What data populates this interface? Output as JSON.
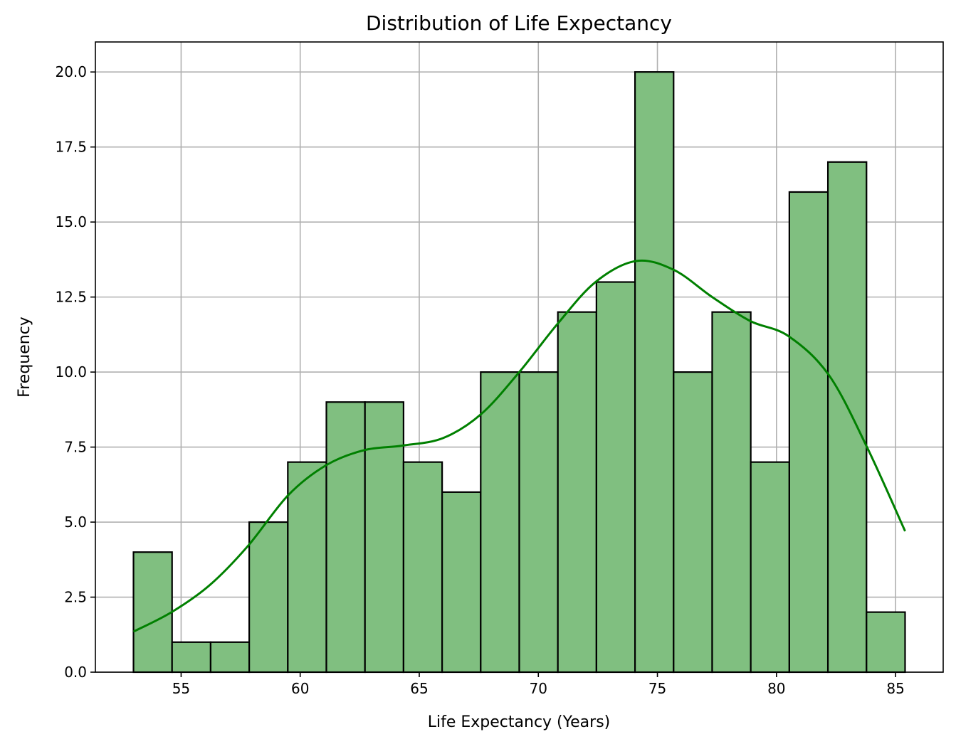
{
  "chart_data": {
    "type": "bar",
    "title": "Distribution of Life Expectancy",
    "xlabel": "Life Expectancy (Years)",
    "ylabel": "Frequency",
    "xlim": [
      51.4,
      87.0
    ],
    "ylim": [
      0,
      21.0
    ],
    "xticks": [
      55,
      60,
      65,
      70,
      75,
      80,
      85
    ],
    "xtick_labels": [
      "55",
      "60",
      "65",
      "70",
      "75",
      "80",
      "85"
    ],
    "yticks": [
      0,
      2.5,
      5.0,
      7.5,
      10.0,
      12.5,
      15.0,
      17.5,
      20.0
    ],
    "ytick_labels": [
      "0.0",
      "2.5",
      "5.0",
      "7.5",
      "10.0",
      "12.5",
      "15.0",
      "17.5",
      "20.0"
    ],
    "grid": true,
    "bins": {
      "edges": [
        53.0,
        54.62,
        56.24,
        57.86,
        59.48,
        61.1,
        62.72,
        64.34,
        65.96,
        67.58,
        69.2,
        70.82,
        72.44,
        74.06,
        75.68,
        77.3,
        78.92,
        80.54,
        82.16,
        83.78,
        85.4
      ],
      "counts": [
        4,
        1,
        1,
        5,
        7,
        9,
        9,
        7,
        6,
        10,
        10,
        12,
        13,
        20,
        10,
        12,
        7,
        16,
        17,
        2
      ]
    },
    "kde": {
      "x": [
        53.0,
        54.6,
        56.2,
        57.8,
        59.5,
        61.1,
        62.7,
        64.3,
        66.0,
        67.6,
        69.2,
        70.8,
        72.4,
        74.1,
        75.7,
        77.3,
        78.9,
        80.5,
        82.2,
        83.8,
        85.4
      ],
      "y": [
        1.35,
        2.0,
        2.9,
        4.2,
        5.9,
        6.9,
        7.4,
        7.55,
        7.8,
        8.6,
        10.0,
        11.6,
        13.0,
        13.7,
        13.4,
        12.5,
        11.7,
        11.2,
        9.9,
        7.5,
        4.7
      ]
    },
    "colors": {
      "bar_fill": "#80bf80",
      "bar_edge": "#000000",
      "kde_line": "#008000",
      "grid": "#b0b0b0"
    }
  }
}
